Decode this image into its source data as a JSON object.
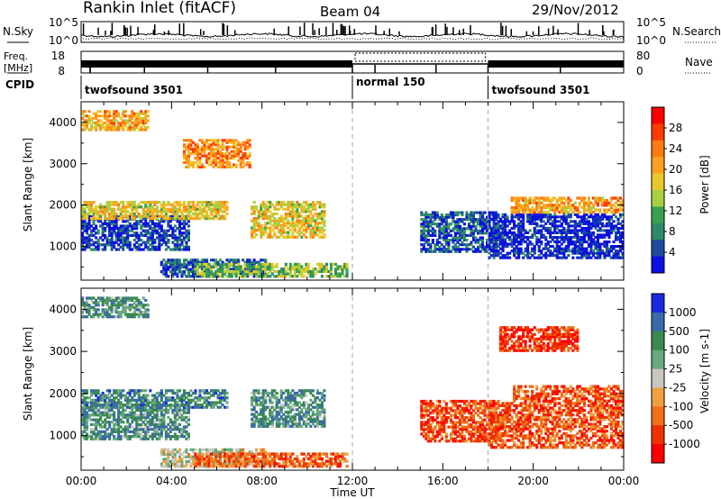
{
  "header": {
    "station": "Rankin Inlet (fitACF)",
    "beam": "Beam 04",
    "date": "29/Nov/2012"
  },
  "top_panels": {
    "nsky_label": "N.Sky",
    "nsky_ticks": [
      "10^5",
      "10^0"
    ],
    "nsearch_ticks": [
      "10^5",
      "10^0"
    ],
    "nsearch_label": "N.Search",
    "freq_label_1": "Freq.",
    "freq_label_2": "[MHz]",
    "freq_ticks": [
      "18",
      "8"
    ],
    "nave_ticks": [
      "80",
      "0"
    ],
    "nave_label": "Nave",
    "cpid_label": "CPID",
    "cpid_segments": [
      {
        "label": "twofsound 3501",
        "start": 0,
        "end": 12
      },
      {
        "label": "normal 150",
        "start": 12,
        "end": 18
      },
      {
        "label": "twofsound 3501",
        "start": 18,
        "end": 24
      }
    ]
  },
  "chart_data": [
    {
      "type": "heatmap",
      "title": "",
      "ylabel": "Slant Range [km]",
      "xlabel": "",
      "ylim": [
        180,
        4500
      ],
      "xlim": [
        0,
        24
      ],
      "y_ticks": [
        1000,
        2000,
        3000,
        4000
      ],
      "colorbar_label": "Power [dB]",
      "colorbar_ticks": [
        "28",
        "24",
        "20",
        "16",
        "12",
        "8",
        "4"
      ],
      "colorbar_colors": [
        "#ff0000",
        "#ff3a00",
        "#ff7a10",
        "#ffa020",
        "#e8c828",
        "#a8d040",
        "#3aa050",
        "#2e8a6a",
        "#1c4aa0",
        "#0a10e0"
      ],
      "regions": [
        {
          "t0": 0.0,
          "t1": 4.8,
          "r0": 900,
          "r1": 1750,
          "level": 0.9
        },
        {
          "t0": 0.0,
          "t1": 6.5,
          "r0": 1650,
          "r1": 2100,
          "level": 0.45
        },
        {
          "t0": 3.5,
          "t1": 8.2,
          "r0": 250,
          "r1": 700,
          "level": 0.85
        },
        {
          "t0": 5.0,
          "t1": 11.8,
          "r0": 250,
          "r1": 600,
          "level": 0.6
        },
        {
          "t0": 7.5,
          "t1": 10.8,
          "r0": 1200,
          "r1": 2100,
          "level": 0.45
        },
        {
          "t0": 15.0,
          "t1": 18.5,
          "r0": 850,
          "r1": 1850,
          "level": 0.85
        },
        {
          "t0": 18.0,
          "t1": 24.0,
          "r0": 700,
          "r1": 1800,
          "level": 0.95
        },
        {
          "t0": 19.0,
          "t1": 24.0,
          "r0": 1800,
          "r1": 2200,
          "level": 0.35
        },
        {
          "t0": 0.0,
          "t1": 3.0,
          "r0": 3800,
          "r1": 4300,
          "level": 0.35
        },
        {
          "t0": 4.5,
          "t1": 7.5,
          "r0": 2900,
          "r1": 3600,
          "level": 0.3
        }
      ]
    },
    {
      "type": "heatmap",
      "title": "",
      "ylabel": "Slant Range [km]",
      "xlabel": "Time UT",
      "ylim": [
        180,
        4500
      ],
      "xlim": [
        0,
        24
      ],
      "y_ticks": [
        1000,
        2000,
        3000,
        4000
      ],
      "x_ticks": [
        "00:00",
        "04:00",
        "08:00",
        "12:00",
        "16:00",
        "20:00",
        "00:00"
      ],
      "colorbar_label": "Velocity [m s-1]",
      "colorbar_ticks": [
        "1000",
        "500",
        "100",
        "25",
        "-25",
        "-100",
        "-500",
        "-1000"
      ],
      "colorbar_colors": [
        "#1a2ae0",
        "#3a6aa8",
        "#3a8a50",
        "#6aa880",
        "#c8c8c0",
        "#f0a040",
        "#f07018",
        "#f03000",
        "#ff0000"
      ],
      "regions": [
        {
          "t0": 0.0,
          "t1": 4.8,
          "r0": 900,
          "r1": 1750,
          "level": 0.3
        },
        {
          "t0": 0.0,
          "t1": 6.5,
          "r0": 1650,
          "r1": 2100,
          "level": 0.25
        },
        {
          "t0": 3.5,
          "t1": 8.2,
          "r0": 250,
          "r1": 700,
          "level": 0.5
        },
        {
          "t0": 5.0,
          "t1": 11.8,
          "r0": 250,
          "r1": 600,
          "level": 0.75
        },
        {
          "t0": 7.5,
          "t1": 10.8,
          "r0": 1200,
          "r1": 2100,
          "level": 0.3
        },
        {
          "t0": 15.0,
          "t1": 18.5,
          "r0": 850,
          "r1": 1850,
          "level": 0.8
        },
        {
          "t0": 18.0,
          "t1": 24.0,
          "r0": 700,
          "r1": 1800,
          "level": 0.78
        },
        {
          "t0": 19.0,
          "t1": 24.0,
          "r0": 1800,
          "r1": 2200,
          "level": 0.8
        },
        {
          "t0": 0.0,
          "t1": 3.0,
          "r0": 3800,
          "r1": 4300,
          "level": 0.3
        },
        {
          "t0": 18.5,
          "t1": 22.0,
          "r0": 3000,
          "r1": 3600,
          "level": 0.85
        }
      ]
    }
  ]
}
